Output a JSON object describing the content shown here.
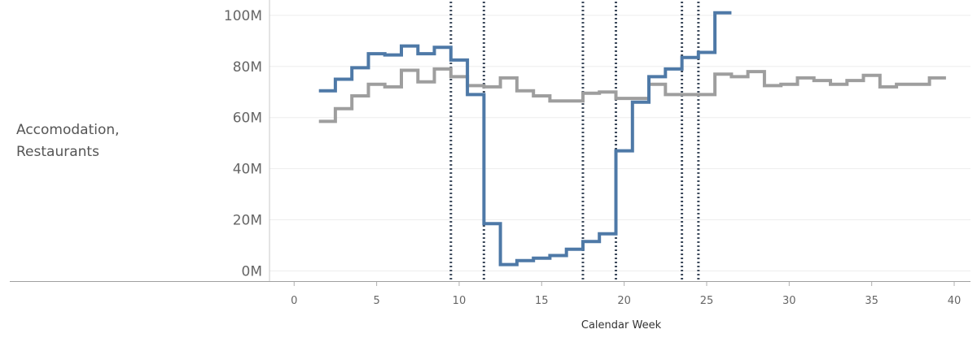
{
  "row_label": [
    "Accomodation,",
    "Restaurants"
  ],
  "chart_data": {
    "type": "line",
    "line_style": "step",
    "xlabel": "Calendar Week",
    "ylabel": "Accomodation, Restaurants",
    "xlim": [
      -1,
      40
    ],
    "ylim": [
      -4,
      106
    ],
    "x_ticks": [
      0,
      5,
      10,
      15,
      20,
      25,
      30,
      35,
      40
    ],
    "x_tick_labels": [
      "0",
      "5",
      "10",
      "15",
      "20",
      "25",
      "30",
      "35",
      "40"
    ],
    "y_ticks": [
      0,
      20,
      40,
      60,
      80,
      100
    ],
    "y_tick_labels": [
      "0M",
      "20M",
      "40M",
      "60M",
      "80M",
      "100M"
    ],
    "y_unit": "M",
    "grid": "horizontal",
    "legend": "none",
    "vertical_markers": [
      {
        "x": 9.5,
        "style": "dotted"
      },
      {
        "x": 11.5,
        "style": "dotted"
      },
      {
        "x": 17.5,
        "style": "dotted"
      },
      {
        "x": 19.5,
        "style": "dotted"
      },
      {
        "x": 23.5,
        "style": "dotted"
      },
      {
        "x": 24.5,
        "style": "dotted"
      }
    ],
    "series": [
      {
        "color": "#9e9e9e",
        "x": [
          2,
          3,
          4,
          5,
          6,
          7,
          8,
          9,
          10,
          11,
          12,
          13,
          14,
          15,
          16,
          17,
          18,
          19,
          20,
          21,
          22,
          23,
          24,
          25,
          26,
          27,
          28,
          29,
          30,
          31,
          32,
          33,
          34,
          35,
          36,
          37,
          38,
          39
        ],
        "values": [
          58.5,
          63.5,
          68.5,
          73,
          72,
          78.5,
          74,
          79,
          76,
          72.5,
          72,
          75.5,
          70.5,
          68.5,
          66.5,
          66.5,
          69.5,
          70,
          67.5,
          67.5,
          73,
          69,
          69,
          69,
          77,
          76,
          78,
          72.5,
          73,
          75.5,
          74.5,
          73,
          74.5,
          76.5,
          72,
          73,
          73,
          75.5
        ]
      },
      {
        "color": "#4e79a7",
        "x": [
          2,
          3,
          4,
          5,
          6,
          7,
          8,
          9,
          10,
          11,
          12,
          13,
          14,
          15,
          16,
          17,
          18,
          19,
          20,
          21,
          22,
          23,
          24,
          25,
          26
        ],
        "values": [
          70.5,
          75,
          79.5,
          85,
          84.5,
          88,
          85,
          87.5,
          82.5,
          69,
          18.5,
          2.5,
          4,
          5,
          6,
          8.5,
          11.5,
          14.5,
          47,
          66,
          76,
          79,
          83.5,
          85.5,
          101
        ]
      }
    ]
  }
}
